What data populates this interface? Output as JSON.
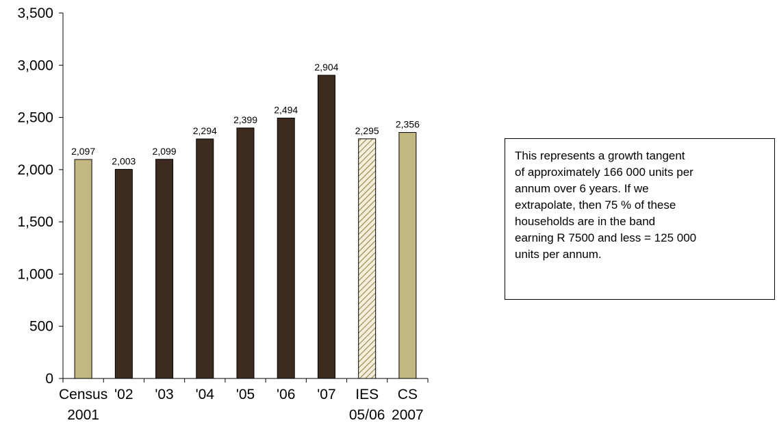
{
  "chart_data": {
    "type": "bar",
    "categories": [
      "Census 2001",
      "'02",
      "'03",
      "'04",
      "'05",
      "'06",
      "'07",
      "IES 05/06",
      "CS 2007"
    ],
    "category_lines": [
      [
        "Census",
        "2001"
      ],
      [
        "'02"
      ],
      [
        "'03"
      ],
      [
        "'04"
      ],
      [
        "'05"
      ],
      [
        "'06"
      ],
      [
        "'07"
      ],
      [
        "IES",
        "05/06"
      ],
      [
        "CS",
        "2007"
      ]
    ],
    "values": [
      2097,
      2003,
      2099,
      2294,
      2399,
      2494,
      2904,
      2295,
      2356
    ],
    "data_labels": [
      "2,097",
      "2,003",
      "2,099",
      "2,294",
      "2,399",
      "2,494",
      "2,904",
      "2,295",
      "2,356"
    ],
    "bar_styles": [
      "census",
      "annual",
      "annual",
      "annual",
      "annual",
      "annual",
      "annual",
      "hatched",
      "census"
    ],
    "colors": {
      "census": "#c4b882",
      "annual": "#3d2b1f",
      "hatched_line": "#8c7a3e",
      "hatched_bg": "#f4eedb",
      "axis": "#000000"
    },
    "title": "",
    "xlabel": "",
    "ylabel": "",
    "ylim": [
      0,
      3500
    ],
    "yticks": [
      0,
      500,
      1000,
      1500,
      2000,
      2500,
      3000,
      3500
    ],
    "ytick_labels": [
      "0",
      "500",
      "1,000",
      "1,500",
      "2,000",
      "2,500",
      "3,000",
      "3,500"
    ],
    "grid": false,
    "legend": "none"
  },
  "note": {
    "lines": [
      "This represents a growth tangent",
      "of approximately 166 000 units per",
      "annum over 6 years. If we",
      "extrapolate, then 75 % of these",
      "households are in the band",
      "earning R 7500 and less = 125 000",
      "units per annum."
    ]
  }
}
